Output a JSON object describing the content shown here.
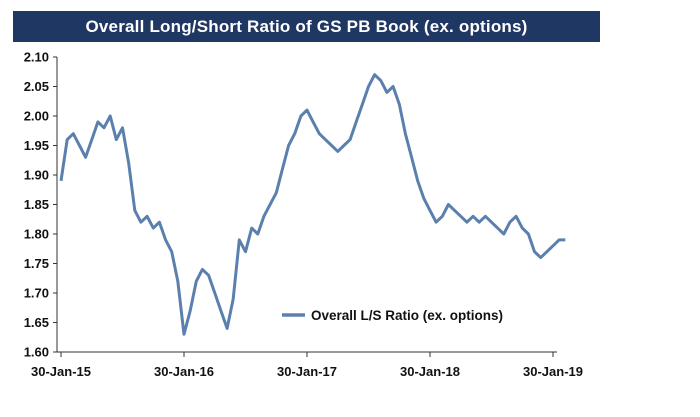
{
  "chart_data": {
    "type": "line",
    "title": "Overall Long/Short Ratio of GS PB Book (ex. options)",
    "xlabel": "",
    "ylabel": "",
    "ylim": [
      1.6,
      2.1
    ],
    "yticks": [
      "2.10",
      "2.05",
      "2.00",
      "1.95",
      "1.90",
      "1.85",
      "1.80",
      "1.75",
      "1.70",
      "1.65",
      "1.60"
    ],
    "xticks": [
      "30-Jan-15",
      "30-Jan-16",
      "30-Jan-17",
      "30-Jan-18",
      "30-Jan-19"
    ],
    "color": "#5b80ad",
    "legend": "Overall L/S Ratio (ex. options)",
    "series": [
      {
        "name": "Overall L/S Ratio (ex. options)",
        "x": [
          0,
          0.05,
          0.1,
          0.15,
          0.2,
          0.25,
          0.3,
          0.35,
          0.4,
          0.45,
          0.5,
          0.55,
          0.6,
          0.65,
          0.7,
          0.75,
          0.8,
          0.85,
          0.9,
          0.95,
          1.0,
          1.05,
          1.1,
          1.15,
          1.2,
          1.25,
          1.3,
          1.35,
          1.4,
          1.45,
          1.5,
          1.55,
          1.6,
          1.65,
          1.7,
          1.75,
          1.8,
          1.85,
          1.9,
          1.95,
          2.0,
          2.05,
          2.1,
          2.15,
          2.2,
          2.25,
          2.3,
          2.35,
          2.4,
          2.45,
          2.5,
          2.55,
          2.6,
          2.65,
          2.7,
          2.75,
          2.8,
          2.85,
          2.9,
          2.95,
          3.0,
          3.05,
          3.1,
          3.15,
          3.2,
          3.25,
          3.3,
          3.35,
          3.4,
          3.45,
          3.5,
          3.55,
          3.6,
          3.65,
          3.7,
          3.75,
          3.8,
          3.85,
          3.9,
          3.95,
          4.0,
          4.05,
          4.1
        ],
        "values": [
          1.89,
          1.96,
          1.97,
          1.95,
          1.93,
          1.96,
          1.99,
          1.98,
          2.0,
          1.96,
          1.98,
          1.92,
          1.84,
          1.82,
          1.83,
          1.81,
          1.82,
          1.79,
          1.77,
          1.72,
          1.63,
          1.67,
          1.72,
          1.74,
          1.73,
          1.7,
          1.67,
          1.64,
          1.69,
          1.79,
          1.77,
          1.81,
          1.8,
          1.83,
          1.85,
          1.87,
          1.91,
          1.95,
          1.97,
          2.0,
          2.01,
          1.99,
          1.97,
          1.96,
          1.95,
          1.94,
          1.95,
          1.96,
          1.99,
          2.02,
          2.05,
          2.07,
          2.06,
          2.04,
          2.05,
          2.02,
          1.97,
          1.93,
          1.89,
          1.86,
          1.84,
          1.82,
          1.83,
          1.85,
          1.84,
          1.83,
          1.82,
          1.83,
          1.82,
          1.83,
          1.82,
          1.81,
          1.8,
          1.82,
          1.83,
          1.81,
          1.8,
          1.77,
          1.76,
          1.77,
          1.78,
          1.79,
          1.79
        ]
      }
    ]
  }
}
